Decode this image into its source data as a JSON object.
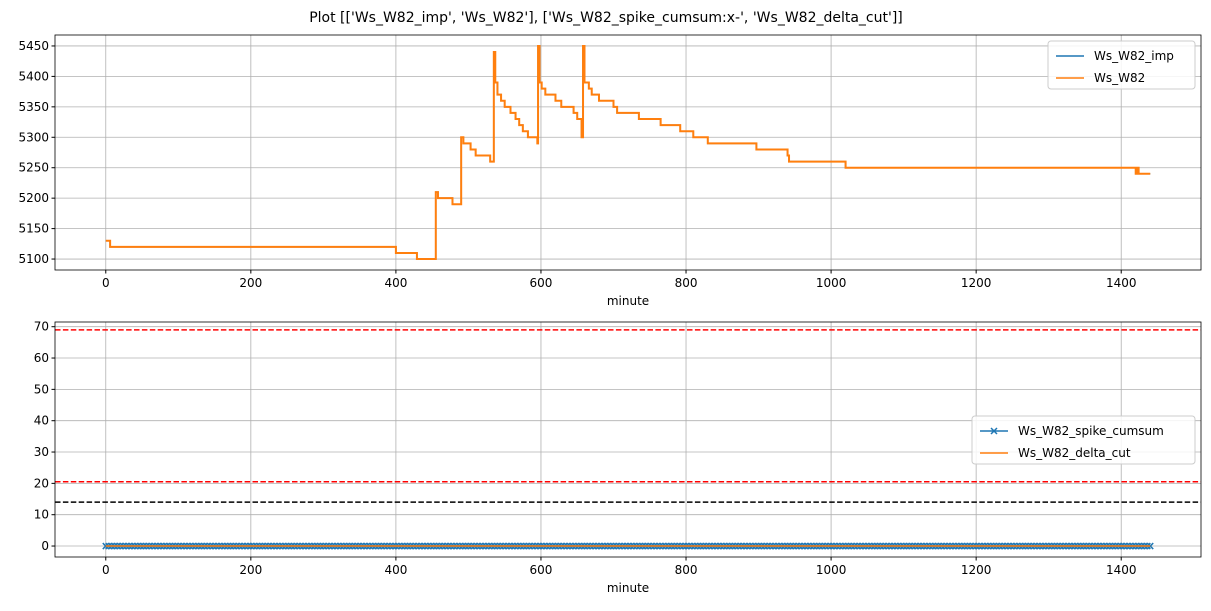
{
  "title": "Plot [['Ws_W82_imp', 'Ws_W82'], ['Ws_W82_spike_cumsum:x-', 'Ws_W82_delta_cut']]",
  "chart_data": [
    {
      "type": "line",
      "xlabel": "minute",
      "ylabel": "",
      "xlim": [
        -70,
        1510
      ],
      "ylim": [
        5082,
        5468
      ],
      "xticks": [
        0,
        200,
        400,
        600,
        800,
        1000,
        1200,
        1400
      ],
      "yticks": [
        5100,
        5150,
        5200,
        5250,
        5300,
        5350,
        5400,
        5450
      ],
      "grid": true,
      "legend_position": "top-right",
      "series": [
        {
          "name": "Ws_W82_imp",
          "color": "#1f77b4",
          "step": true,
          "points": [
            [
              0,
              5130
            ],
            [
              6,
              5120
            ],
            [
              400,
              5110
            ],
            [
              429,
              5100
            ],
            [
              455,
              5210
            ],
            [
              458,
              5200
            ],
            [
              478,
              5190
            ],
            [
              490,
              5300
            ],
            [
              493,
              5290
            ],
            [
              503,
              5280
            ],
            [
              510,
              5270
            ],
            [
              530,
              5260
            ],
            [
              535,
              5440
            ],
            [
              537,
              5390
            ],
            [
              540,
              5370
            ],
            [
              545,
              5360
            ],
            [
              550,
              5350
            ],
            [
              558,
              5340
            ],
            [
              565,
              5330
            ],
            [
              570,
              5320
            ],
            [
              575,
              5310
            ],
            [
              582,
              5300
            ],
            [
              595,
              5290
            ],
            [
              596,
              5450
            ],
            [
              598,
              5390
            ],
            [
              601,
              5380
            ],
            [
              606,
              5370
            ],
            [
              620,
              5360
            ],
            [
              628,
              5350
            ],
            [
              645,
              5340
            ],
            [
              650,
              5330
            ],
            [
              656,
              5300
            ],
            [
              658,
              5450
            ],
            [
              660,
              5390
            ],
            [
              666,
              5380
            ],
            [
              670,
              5370
            ],
            [
              680,
              5360
            ],
            [
              700,
              5350
            ],
            [
              705,
              5340
            ],
            [
              735,
              5330
            ],
            [
              765,
              5320
            ],
            [
              792,
              5310
            ],
            [
              810,
              5300
            ],
            [
              830,
              5290
            ],
            [
              897,
              5280
            ],
            [
              940,
              5270
            ],
            [
              942,
              5260
            ],
            [
              1020,
              5250
            ],
            [
              1420,
              5240
            ],
            [
              1422,
              5250
            ],
            [
              1424,
              5240
            ],
            [
              1440,
              5240
            ]
          ]
        },
        {
          "name": "Ws_W82",
          "color": "#ff7f0e",
          "step": true,
          "points": [
            [
              0,
              5130
            ],
            [
              6,
              5120
            ],
            [
              400,
              5110
            ],
            [
              429,
              5100
            ],
            [
              455,
              5210
            ],
            [
              458,
              5200
            ],
            [
              478,
              5190
            ],
            [
              490,
              5300
            ],
            [
              493,
              5290
            ],
            [
              503,
              5280
            ],
            [
              510,
              5270
            ],
            [
              530,
              5260
            ],
            [
              535,
              5440
            ],
            [
              537,
              5390
            ],
            [
              540,
              5370
            ],
            [
              545,
              5360
            ],
            [
              550,
              5350
            ],
            [
              558,
              5340
            ],
            [
              565,
              5330
            ],
            [
              570,
              5320
            ],
            [
              575,
              5310
            ],
            [
              582,
              5300
            ],
            [
              595,
              5290
            ],
            [
              596,
              5450
            ],
            [
              598,
              5390
            ],
            [
              601,
              5380
            ],
            [
              606,
              5370
            ],
            [
              620,
              5360
            ],
            [
              628,
              5350
            ],
            [
              645,
              5340
            ],
            [
              650,
              5330
            ],
            [
              656,
              5300
            ],
            [
              658,
              5450
            ],
            [
              660,
              5390
            ],
            [
              666,
              5380
            ],
            [
              670,
              5370
            ],
            [
              680,
              5360
            ],
            [
              700,
              5350
            ],
            [
              705,
              5340
            ],
            [
              735,
              5330
            ],
            [
              765,
              5320
            ],
            [
              792,
              5310
            ],
            [
              810,
              5300
            ],
            [
              830,
              5290
            ],
            [
              897,
              5280
            ],
            [
              940,
              5270
            ],
            [
              942,
              5260
            ],
            [
              1020,
              5250
            ],
            [
              1420,
              5240
            ],
            [
              1422,
              5250
            ],
            [
              1424,
              5240
            ],
            [
              1440,
              5240
            ]
          ]
        }
      ]
    },
    {
      "type": "line",
      "xlabel": "minute",
      "ylabel": "",
      "xlim": [
        -70,
        1510
      ],
      "ylim": [
        -3.5,
        71.5
      ],
      "xticks": [
        0,
        200,
        400,
        600,
        800,
        1000,
        1200,
        1400
      ],
      "yticks": [
        0,
        10,
        20,
        30,
        40,
        50,
        60,
        70
      ],
      "grid": true,
      "legend_position": "center-right",
      "series": [
        {
          "name": "Ws_W82_spike_cumsum",
          "color": "#1f77b4",
          "marker": "x",
          "x_range": [
            0,
            1440
          ],
          "x_step": 1,
          "value": 0
        },
        {
          "name": "Ws_W82_delta_cut",
          "color": "#ff7f0e",
          "x_range": [
            0,
            1440
          ],
          "value": 0
        }
      ],
      "hlines": [
        {
          "y": 69,
          "color": "#ff0000",
          "style": "dashed"
        },
        {
          "y": 20.5,
          "color": "#ff0000",
          "style": "dashed"
        },
        {
          "y": 14,
          "color": "#000000",
          "style": "dashed"
        }
      ]
    }
  ]
}
